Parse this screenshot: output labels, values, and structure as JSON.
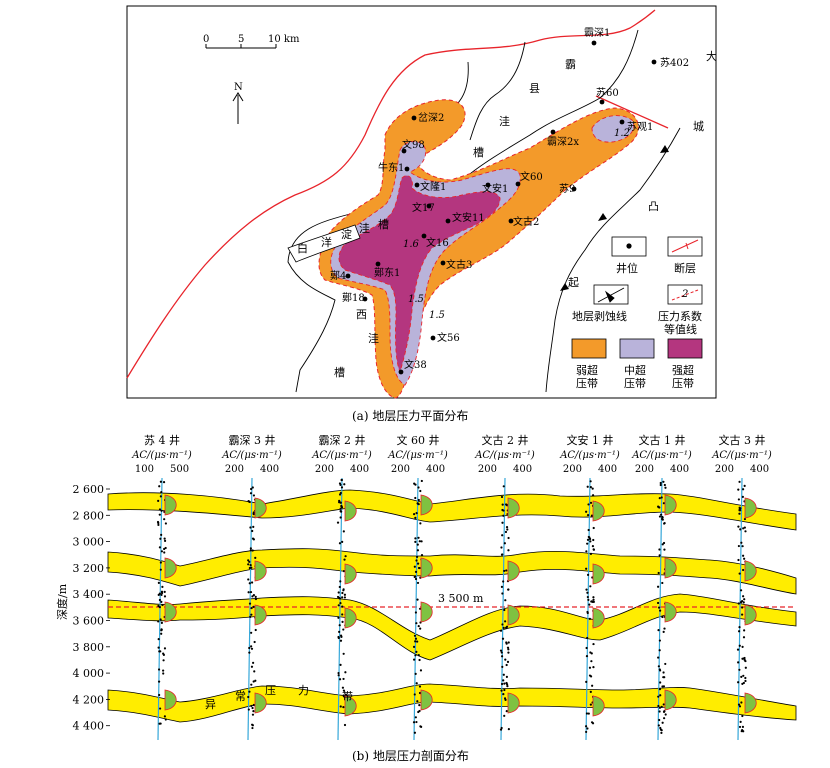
{
  "map": {
    "scale": {
      "t0": "0",
      "t1": "5",
      "t2": "10 km"
    },
    "north": "N",
    "wells": [
      "霸深1",
      "苏402",
      "苏60",
      "苏观1",
      "霸深2x",
      "岔深2",
      "文98",
      "牛东1",
      "文隆1",
      "文17",
      "文安11",
      "文安1",
      "文60",
      "苏9",
      "文古2",
      "文16",
      "文古3",
      "鄚东1",
      "鄚4",
      "鄚18",
      "文56",
      "文38"
    ],
    "regions": [
      "霸",
      "县",
      "洼",
      "槽",
      "大",
      "城",
      "凸",
      "起",
      "白",
      "洋",
      "淀",
      "洼",
      "槽",
      "西",
      "洼",
      "槽"
    ],
    "contours": [
      "1.2",
      "1.6",
      "1.5",
      "1.5"
    ],
    "legend": {
      "well": "井位",
      "fault": "断层",
      "erosion": "地层剥蚀线",
      "isoline_1": "压力系数",
      "isoline_2": "等值线",
      "isoline_sample": "2",
      "weak_1": "弱超",
      "weak_2": "压带",
      "mid_1": "中超",
      "mid_2": "压带",
      "strong_1": "强超",
      "strong_2": "压带"
    },
    "caption": "(a) 地层压力平面分布"
  },
  "section": {
    "wells": [
      {
        "name": "苏 4 井",
        "t1": "100",
        "t2": "500"
      },
      {
        "name": "霸深 3 井",
        "t1": "200",
        "t2": "400"
      },
      {
        "name": "霸深 2 井",
        "t1": "200",
        "t2": "400"
      },
      {
        "name": "文 60 井",
        "t1": "200",
        "t2": "400"
      },
      {
        "name": "文古 2 井",
        "t1": "200",
        "t2": "400"
      },
      {
        "name": "文安 1 井",
        "t1": "200",
        "t2": "400"
      },
      {
        "name": "文古 1 井",
        "t1": "200",
        "t2": "400"
      },
      {
        "name": "文古 3 井",
        "t1": "200",
        "t2": "400"
      }
    ],
    "ac_label": "AC/(μs·m⁻¹)",
    "y_axis_label": "深度/m",
    "depth_ticks": [
      "2 600",
      "2 800",
      "3 000",
      "3 200",
      "3 400",
      "3 600",
      "3 800",
      "4 000",
      "4 200",
      "4 400"
    ],
    "reference_line": "3 500 m",
    "band_chars": [
      "异",
      "常",
      "压",
      "力",
      "带"
    ],
    "caption": "(b) 地层压力剖面分布",
    "colors": {
      "band": "#ffed00",
      "ref_line": "#e8242b",
      "well": "#35a7d9",
      "green": "#7fc241"
    }
  }
}
